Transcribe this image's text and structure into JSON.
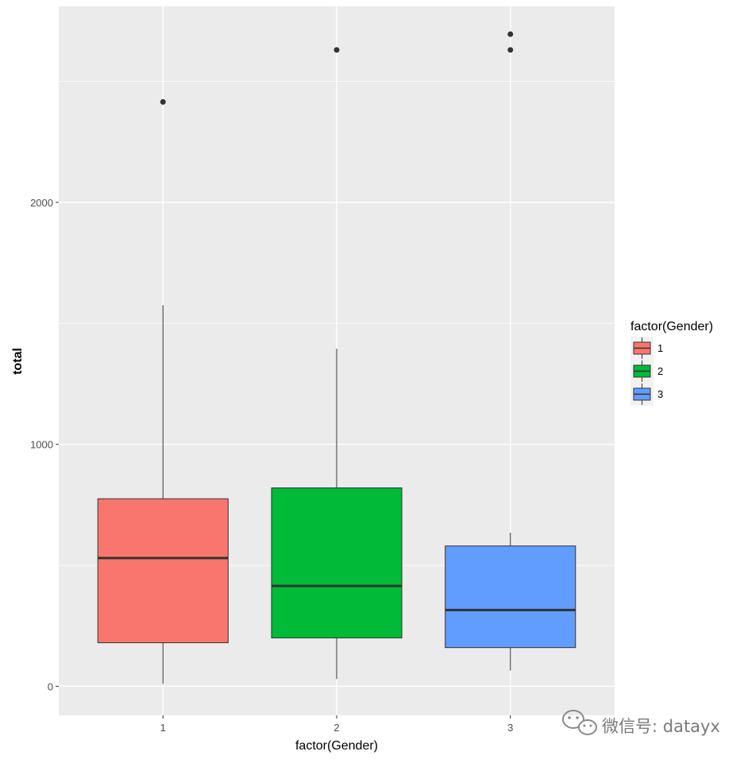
{
  "chart_data": {
    "type": "boxplot",
    "title": "",
    "xlabel": "factor(Gender)",
    "ylabel": "total",
    "categories": [
      "1",
      "2",
      "3"
    ],
    "ylim": [
      -120,
      2810
    ],
    "y_ticks": [
      0,
      1000,
      2000
    ],
    "y_tick_labels": [
      "0",
      "1000",
      "2000"
    ],
    "grid": true,
    "legend": {
      "title": "factor(Gender)",
      "placement": "right",
      "items": [
        "1",
        "2",
        "3"
      ]
    },
    "colors": [
      "#F8766D",
      "#00BA38",
      "#619CFF"
    ],
    "panel_background": "#EBEBEB",
    "grid_color": "#FFFFFF",
    "boxes": [
      {
        "category": "1",
        "whisker_low": 10,
        "q1": 180,
        "median": 530,
        "q3": 775,
        "whisker_high": 1575,
        "outliers": [
          2415
        ]
      },
      {
        "category": "2",
        "whisker_low": 30,
        "q1": 200,
        "median": 415,
        "q3": 820,
        "whisker_high": 1395,
        "outliers": [
          2630
        ]
      },
      {
        "category": "3",
        "whisker_low": 65,
        "q1": 160,
        "median": 315,
        "q3": 580,
        "whisker_high": 635,
        "outliers": [
          2630,
          2695
        ]
      }
    ]
  },
  "watermark": {
    "text": "微信号: datayx",
    "icon": "wechat-logo-icon"
  }
}
